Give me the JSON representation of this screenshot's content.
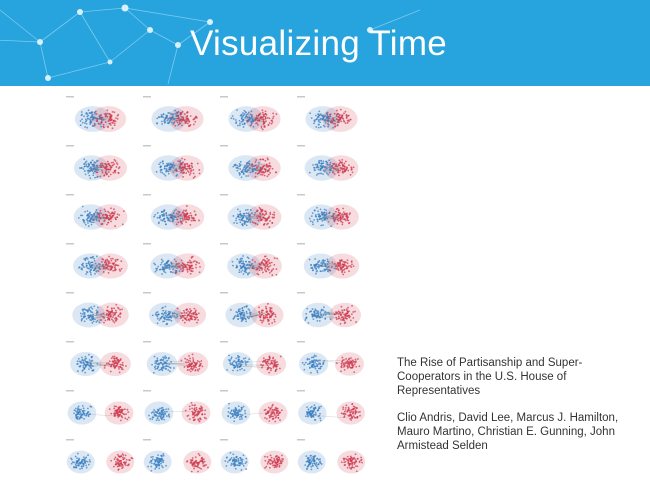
{
  "slide": {
    "title": "Visualizing Time",
    "caption": {
      "paper_title": "The Rise of Partisanship and Super-Cooperators in the U.S. House of Representatives",
      "authors": "Clio Andris, David Lee, Marcus J. Hamilton, Mauro Martino, Christian E. Gunning, John Armistead Selden"
    }
  },
  "colors": {
    "banner": "#27a3de",
    "democrat": "#3a7fc1",
    "republican": "#cf3a4f"
  },
  "network_grid": {
    "rows": 8,
    "columns": 4,
    "separation": [
      0.05,
      0.1,
      0.1,
      0.1,
      0.15,
      0.15,
      0.12,
      0.2,
      0.2,
      0.18,
      0.2,
      0.25,
      0.25,
      0.25,
      0.25,
      0.3,
      0.35,
      0.4,
      0.45,
      0.5,
      0.6,
      0.65,
      0.75,
      0.85,
      0.9,
      0.9,
      0.9,
      0.95,
      1.0,
      1.0,
      1.0,
      1.0
    ]
  }
}
